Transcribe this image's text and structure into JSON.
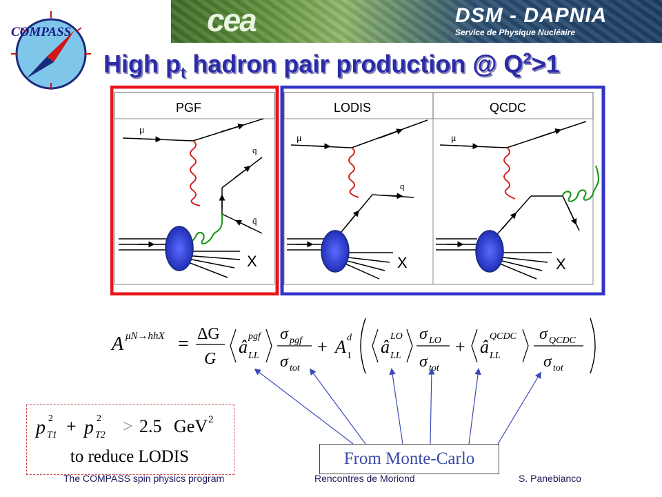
{
  "header": {
    "logo_text": "COMPASS",
    "banner_left": "cea",
    "banner_right_title": "DSM - DAPNIA",
    "banner_right_subtitle": "Service de Physique Nucléaire"
  },
  "title": {
    "main": "High p",
    "sub": "t",
    "rest": " hadron pair production @ Q",
    "sup": "2",
    "tail": ">1"
  },
  "diagrams": {
    "panels": [
      {
        "label": "PGF",
        "particles": [
          "μ",
          "q",
          "q̄",
          "X"
        ]
      },
      {
        "label": "LODIS",
        "particles": [
          "μ",
          "q",
          "X"
        ]
      },
      {
        "label": "QCDC",
        "particles": [
          "μ",
          "X"
        ]
      }
    ],
    "colors": {
      "pgf_frame": "#e8141a",
      "others_frame": "#3434c8",
      "photon": "#d42020",
      "gluon": "#1a9a1a",
      "proton": "#2a3ad0"
    }
  },
  "formula": {
    "lhs": "A",
    "lhs_sup": "μN→hhX",
    "eq": "=",
    "dG": "ΔG",
    "G": "G",
    "a": "â",
    "LL": "LL",
    "pgf": "pgf",
    "sigma_pgf": "σ",
    "sub_pgf": "pgf",
    "tot": "tot",
    "plus": "+",
    "A1": "A",
    "A1_sub": "1",
    "A1_sup": "d",
    "LO": "LO",
    "QCDC": "QCDC"
  },
  "cut": {
    "p": "p",
    "T1": "T1",
    "T2": "T2",
    "sq": "2",
    "plus": "+",
    "gt": ">",
    "value": "2.5",
    "unit": "GeV",
    "unit_sup": "2",
    "note": "to reduce LODIS"
  },
  "mc_label": "From Monte-Carlo",
  "footer": {
    "left": "The COMPASS spin physics program",
    "center": "Rencontres de Moriond",
    "right": "S. Panebianco"
  }
}
